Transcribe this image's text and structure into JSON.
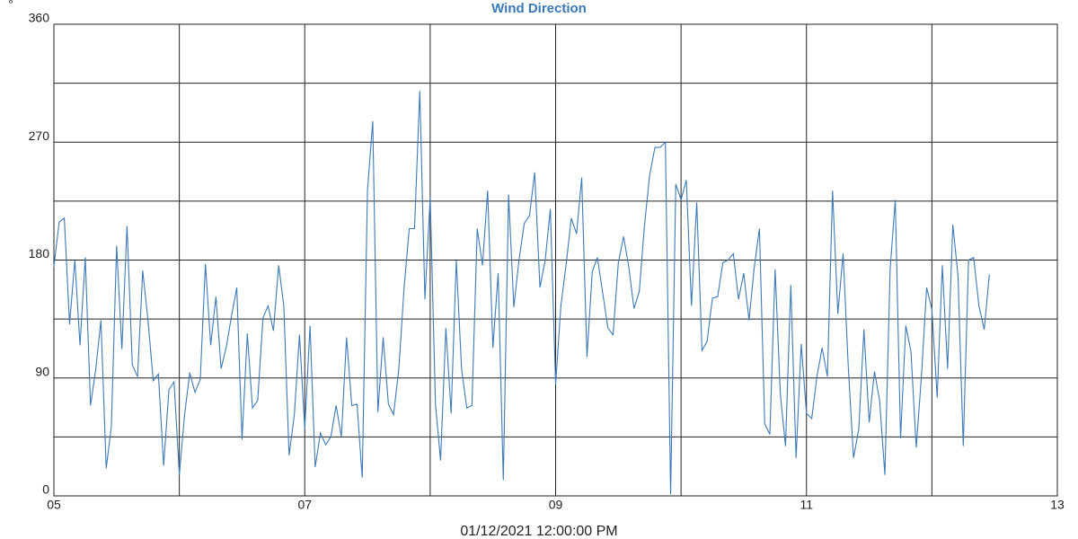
{
  "chart_data": {
    "type": "line",
    "title": "Wind Direction",
    "y_unit": "°",
    "xlabel": "01/12/2021 12:00:00 PM",
    "x": [
      5,
      5.042,
      5.083,
      5.125,
      5.167,
      5.208,
      5.25,
      5.292,
      5.333,
      5.375,
      5.417,
      5.458,
      5.5,
      5.542,
      5.583,
      5.625,
      5.667,
      5.708,
      5.75,
      5.792,
      5.833,
      5.875,
      5.917,
      5.958,
      6,
      6.042,
      6.083,
      6.125,
      6.167,
      6.208,
      6.25,
      6.292,
      6.333,
      6.375,
      6.417,
      6.458,
      6.5,
      6.542,
      6.583,
      6.625,
      6.667,
      6.708,
      6.75,
      6.792,
      6.833,
      6.875,
      6.917,
      6.958,
      7,
      7.042,
      7.083,
      7.125,
      7.167,
      7.208,
      7.25,
      7.292,
      7.333,
      7.375,
      7.417,
      7.458,
      7.5,
      7.542,
      7.583,
      7.625,
      7.667,
      7.708,
      7.75,
      7.792,
      7.833,
      7.875,
      7.917,
      7.958,
      8,
      8.042,
      8.083,
      8.125,
      8.167,
      8.208,
      8.25,
      8.292,
      8.333,
      8.375,
      8.417,
      8.458,
      8.5,
      8.542,
      8.583,
      8.625,
      8.667,
      8.708,
      8.75,
      8.792,
      8.833,
      8.875,
      8.917,
      8.958,
      9,
      9.042,
      9.083,
      9.125,
      9.167,
      9.208,
      9.25,
      9.292,
      9.333,
      9.375,
      9.417,
      9.458,
      9.5,
      9.542,
      9.583,
      9.625,
      9.667,
      9.708,
      9.75,
      9.792,
      9.833,
      9.875,
      9.917,
      9.958,
      10,
      10.042,
      10.083,
      10.125,
      10.167,
      10.208,
      10.25,
      10.292,
      10.333,
      10.375,
      10.417,
      10.458,
      10.5,
      10.542,
      10.583,
      10.625,
      10.667,
      10.708,
      10.75,
      10.792,
      10.833,
      10.875,
      10.917,
      10.958,
      11,
      11.042,
      11.083,
      11.125,
      11.167,
      11.208,
      11.25,
      11.292,
      11.333,
      11.375,
      11.417,
      11.458,
      11.5,
      11.542,
      11.583,
      11.625,
      11.667,
      11.708,
      11.75,
      11.792,
      11.833,
      11.875,
      11.917,
      11.958,
      12,
      12.042,
      12.083,
      12.125,
      12.167,
      12.208,
      12.25,
      12.292,
      12.333,
      12.375,
      12.417,
      12.458
    ],
    "series": [
      {
        "color": "#3d7ab8",
        "values": [
          175,
          209,
          212,
          131,
          180,
          115,
          182,
          69,
          96,
          134,
          21,
          53,
          191,
          112,
          206,
          100,
          91,
          172,
          134,
          88,
          93,
          23,
          81,
          87,
          16,
          62,
          94,
          79,
          89,
          177,
          115,
          152,
          97,
          114,
          138,
          159,
          43,
          124,
          67,
          73,
          136,
          145,
          126,
          176,
          145,
          31,
          62,
          123,
          51,
          130,
          22,
          48,
          39,
          45,
          69,
          45,
          121,
          69,
          70,
          14,
          233,
          286,
          64,
          121,
          70,
          62,
          97,
          159,
          204,
          204,
          309,
          150,
          228,
          70,
          27,
          128,
          63,
          180,
          97,
          67,
          69,
          204,
          176,
          233,
          113,
          170,
          12,
          230,
          144,
          180,
          208,
          214,
          247,
          159,
          180,
          219,
          85,
          145,
          176,
          212,
          200,
          243,
          106,
          171,
          182,
          155,
          128,
          123,
          178,
          198,
          175,
          143,
          156,
          206,
          245,
          266,
          266,
          270,
          1,
          238,
          226,
          241,
          145,
          224,
          111,
          118,
          151,
          152,
          178,
          180,
          185,
          150,
          170,
          134,
          174,
          204,
          55,
          47,
          173,
          77,
          38,
          161,
          29,
          116,
          63,
          59,
          91,
          113,
          91,
          233,
          139,
          185,
          99,
          29,
          51,
          127,
          56,
          95,
          73,
          16,
          173,
          226,
          44,
          130,
          110,
          37,
          92,
          159,
          142,
          75,
          176,
          97,
          207,
          168,
          38,
          180,
          182,
          145,
          127,
          169
        ]
      }
    ],
    "xlim": [
      5,
      13
    ],
    "xticks": [
      {
        "value": 5,
        "label": "05"
      },
      {
        "value": 7,
        "label": "07"
      },
      {
        "value": 9,
        "label": "09"
      },
      11,
      13
    ],
    "xminor": [
      6,
      8,
      10,
      12
    ],
    "ylim": [
      0,
      360
    ],
    "yticks": [
      0,
      90,
      180,
      270,
      360
    ],
    "yminor": [
      45,
      135,
      225,
      315
    ],
    "grid": true
  }
}
